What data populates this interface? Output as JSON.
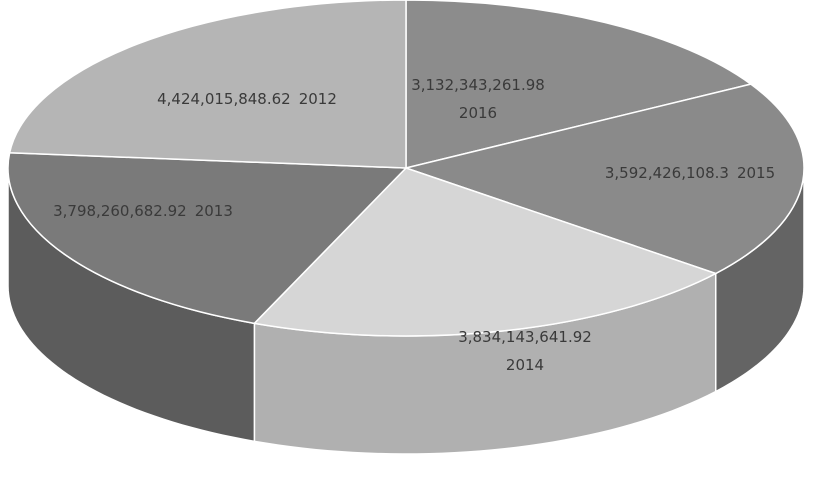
{
  "chart_data": {
    "type": "pie",
    "style": "3d",
    "slices": [
      {
        "label": "2016",
        "value": 3132343261.98,
        "display": "3,132,343,261.98",
        "color": "#8c8c8c",
        "side_color": "#6f6f6f"
      },
      {
        "label": "2015",
        "value": 3592426108.3,
        "display": "3,592,426,108.3",
        "color": "#8a8a8a",
        "side_color": "#646464"
      },
      {
        "label": "2014",
        "value": 3834143641.92,
        "display": "3,834,143,641.92",
        "color": "#d6d6d6",
        "side_color": "#b0b0b0"
      },
      {
        "label": "2013",
        "value": 3798260682.92,
        "display": "3,798,260,682.92",
        "color": "#7a7a7a",
        "side_color": "#5c5c5c"
      },
      {
        "label": "2012",
        "value": 4424015848.62,
        "display": "4,424,015,848.62",
        "color": "#b5b5b5",
        "side_color": "#8f8f8f"
      }
    ]
  }
}
